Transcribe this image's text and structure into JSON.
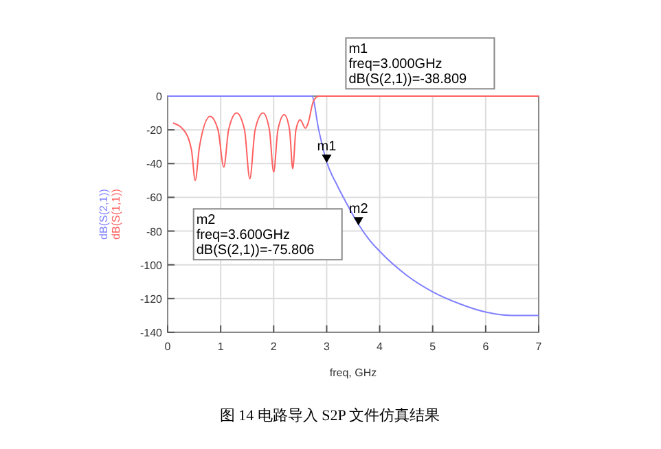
{
  "chart_data": {
    "type": "line",
    "xlabel": "freq, GHz",
    "x": [
      0,
      0.5,
      1,
      1.5,
      2,
      2.5,
      2.72,
      2.85,
      3,
      3.2,
      3.4,
      3.6,
      3.8,
      4,
      4.5,
      5,
      5.5,
      6,
      6.5,
      7
    ],
    "series": [
      {
        "name": "dB(S(2,1))",
        "color": "#8080ff",
        "values": [
          0,
          0,
          0,
          0,
          0,
          0,
          0,
          -20,
          -39,
          -53,
          -65,
          -76,
          -85,
          -92,
          -106,
          -116,
          -123,
          -128,
          -130,
          -130
        ]
      },
      {
        "name": "dB(S(1,1))",
        "color": "#ff6060",
        "x": [
          0.1,
          0.3,
          0.45,
          0.52,
          0.6,
          0.8,
          0.95,
          1.06,
          1.15,
          1.3,
          1.45,
          1.55,
          1.65,
          1.8,
          1.92,
          2,
          2.08,
          2.2,
          2.3,
          2.36,
          2.42,
          2.5,
          2.6,
          2.65,
          2.75,
          2.85,
          7
        ],
        "values": [
          -16,
          -20,
          -32,
          -50,
          -30,
          -12,
          -20,
          -42,
          -20,
          -10,
          -20,
          -49,
          -20,
          -10,
          -20,
          -45,
          -20,
          -11,
          -20,
          -43,
          -20,
          -14,
          -19,
          -16,
          -3,
          0,
          0
        ]
      }
    ],
    "xlim": [
      0,
      7
    ],
    "ylim": [
      -140,
      0
    ],
    "xticks": [
      0,
      1,
      2,
      3,
      4,
      5,
      6,
      7
    ],
    "yticks": [
      -140,
      -120,
      -100,
      -80,
      -60,
      -40,
      -20,
      0
    ],
    "grid": true,
    "annotations": [
      {
        "text": "m1",
        "x": 3,
        "y": -38.809
      },
      {
        "text": "m2",
        "x": 3.6,
        "y": -75.806
      },
      "m1\nfreq=3.000GHz\ndB(S(2,1))=-38.809",
      "m2\nfreq=3.600GHz\ndB(S(2,1))=-75.806",
      "图 14 电路导入 S2P 文件仿真结果"
    ]
  }
}
